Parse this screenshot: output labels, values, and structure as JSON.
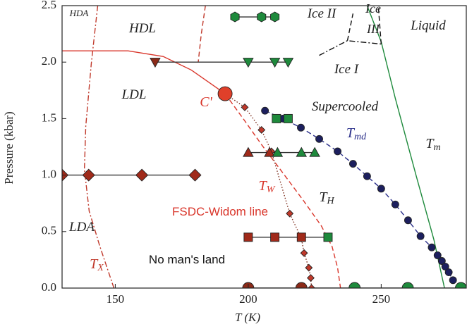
{
  "chart_data": {
    "type": "scatter",
    "x_label": "T (K)",
    "y_label": "Pressure (kbar)",
    "xlim": [
      130,
      282
    ],
    "ylim": [
      0,
      2.5
    ],
    "xticks": [
      150,
      200,
      250
    ],
    "yticks": [
      {
        "value": 0,
        "label": "0.0"
      },
      0.5,
      {
        "value": 1,
        "label": "1.0"
      },
      1.5,
      {
        "value": 2,
        "label": "2.0"
      },
      2.5
    ],
    "series": [
      {
        "x": [
          143.4,
          141,
          138.9,
          138.4,
          140.2,
          144.2,
          149.5
        ],
        "values": [
          2.5,
          1.99,
          1.43,
          1.05,
          0.68,
          0.37,
          0
        ],
        "color": "#c0392b",
        "line": "dashdot",
        "marker": null
      },
      {
        "x": [
          130,
          154.8,
          168,
          178.6,
          186.5,
          191.3
        ],
        "values": [
          2.1,
          2.1,
          2.05,
          1.93,
          1.8,
          1.72
        ],
        "color": "#d9362b",
        "line": "solid",
        "marker": null
      },
      {
        "x": [
          191.3,
          198.4,
          205,
          213,
          220.9,
          227.5,
          231.5,
          233.6,
          234.7
        ],
        "values": [
          1.72,
          1.49,
          1.27,
          1.02,
          0.77,
          0.55,
          0.37,
          0.18,
          0
        ],
        "color": "#d9362b",
        "line": "dashed",
        "marker": null
      },
      {
        "x": [
          183.9,
          182.3,
          181.2
        ],
        "values": [
          2.5,
          2.24,
          2
        ],
        "color": "#c0392b",
        "line": "dashed",
        "marker": null
      },
      {
        "x": [
          244.7,
          250,
          255.3,
          263.2,
          269.8,
          273.8
        ],
        "values": [
          2.5,
          2.18,
          1.68,
          0.99,
          0.43,
          0
        ],
        "color": "#1e8a3c",
        "line": "solid",
        "marker": null
      },
      {
        "x": [
          226.7,
          237.3,
          250
        ],
        "values": [
          2.06,
          2.19,
          2.16
        ],
        "color": "#111111",
        "line": "dashdot",
        "marker": null
      },
      {
        "x": [
          237.3,
          239.4
        ],
        "values": [
          2.19,
          2.43
        ],
        "color": "#111111",
        "line": "dashed",
        "marker": null
      },
      {
        "x": [
          250,
          248.9
        ],
        "values": [
          2.16,
          2.5
        ],
        "color": "#111111",
        "line": "dashed",
        "marker": null
      },
      {
        "x": [
          191.3,
          198.7,
          205,
          208.7,
          215.6,
          220,
          221,
          222.8,
          223.5,
          223.8
        ],
        "values": [
          1.72,
          1.6,
          1.4,
          1.21,
          0.66,
          0.44,
          0.31,
          0.18,
          0.09,
          0
        ],
        "color": "#7a2a1a",
        "line": "dotted",
        "marker": null
      },
      {
        "x": [
          198.7,
          205,
          208.7,
          215.6,
          220,
          221,
          222.8,
          223.5,
          223.8
        ],
        "values": [
          1.6,
          1.4,
          1.21,
          0.66,
          0.44,
          0.31,
          0.18,
          0.09,
          0
        ],
        "color": "#c0392b",
        "line": null,
        "marker": "diamond",
        "size": 4
      },
      {
        "x": [
          206.3,
          213,
          219.8,
          226.7,
          233.6,
          239.4,
          244.7,
          250,
          255.3,
          260.1,
          264.8,
          269,
          271.2,
          272.8,
          274.1,
          275.4,
          277
        ],
        "values": [
          1.57,
          1.5,
          1.42,
          1.32,
          1.21,
          1.1,
          0.99,
          0.88,
          0.74,
          0.6,
          0.46,
          0.36,
          0.29,
          0.24,
          0.19,
          0.14,
          0.07
        ],
        "color": "#1c1f5e",
        "line": "dashed",
        "line_color": "#2a2f8a",
        "marker": "circle",
        "size": 5
      },
      {
        "x": [
          195,
          205,
          210
        ],
        "values": [
          2.4,
          2.4,
          2.4
        ],
        "color": "#1e8a3c",
        "line": "solid",
        "line_color": "#333333",
        "marker": "hexagon",
        "size": 7
      },
      {
        "x": [
          165,
          200,
          210,
          215
        ],
        "values": [
          2,
          2,
          2,
          2
        ],
        "colors": [
          "#8b2a18",
          "#1e8a3c",
          "#1e8a3c",
          "#1e8a3c"
        ],
        "line": "solid",
        "line_color": "#333333",
        "marker": "triangle-down",
        "size": 7
      },
      {
        "x": [
          200,
          208,
          211,
          220,
          225
        ],
        "values": [
          1.2,
          1.2,
          1.2,
          1.2,
          1.2
        ],
        "colors": [
          "#a02a1a",
          "#a02a1a",
          "#1e8a3c",
          "#1e8a3c",
          "#1e8a3c"
        ],
        "line": "solid",
        "line_color": "#333333",
        "marker": "triangle-up",
        "size": 7
      },
      {
        "x": [
          130,
          140,
          160,
          180
        ],
        "values": [
          1,
          1,
          1,
          1
        ],
        "color": "#a02a1a",
        "line": "solid",
        "line_color": "#333333",
        "marker": "diamond",
        "size": 7
      },
      {
        "x": [
          210.6,
          215
        ],
        "values": [
          1.5,
          1.5
        ],
        "color": "#1e8a3c",
        "line": "solid",
        "line_color": "#333333",
        "marker": "square",
        "size": 6
      },
      {
        "x": [
          200,
          210,
          220,
          230
        ],
        "values": [
          0.45,
          0.45,
          0.45,
          0.45
        ],
        "colors": [
          "#a02a1a",
          "#a02a1a",
          "#a02a1a",
          "#1e8a3c"
        ],
        "line": "solid",
        "line_color": "#333333",
        "marker": "square",
        "size": 6
      },
      {
        "x": [
          200,
          220,
          240,
          260,
          280,
          282
        ],
        "values": [
          0,
          0,
          0,
          0,
          0,
          0
        ],
        "colors": [
          "#8b2a18",
          "#8b2a18",
          "#1e8a3c",
          "#1e8a3c",
          "#1e8a3c",
          null
        ],
        "line": "solid",
        "line_color": "#333333",
        "marker": "circle",
        "size": 8
      },
      {
        "x": [
          191.3
        ],
        "values": [
          1.72
        ],
        "color": "#e0402a",
        "line": null,
        "marker": "circle",
        "size": 10
      }
    ],
    "annotations": [
      {
        "text": "HDA",
        "color": "#222222"
      },
      {
        "text": "HDL",
        "color": "#222222"
      },
      {
        "text": "Ice II",
        "color": "#222222"
      },
      {
        "text": "Ice",
        "color": "#222222"
      },
      {
        "text": "III",
        "color": "#222222"
      },
      {
        "text": "Liquid",
        "color": "#222222"
      },
      {
        "text": "Ice I",
        "color": "#222222"
      },
      {
        "text": "LDL",
        "color": "#222222"
      },
      {
        "text": "C'",
        "color": "#d9362b"
      },
      {
        "text": "Supercooled",
        "color": "#222222"
      },
      {
        "text": "T",
        "sub": "md",
        "color": "#2a2f8a"
      },
      {
        "text": "T",
        "sub": "m",
        "color": "#222222"
      },
      {
        "text": "T",
        "sub": "W",
        "color": "#d9362b"
      },
      {
        "text": "T",
        "sub": "H",
        "color": "#222222"
      },
      {
        "text": "FSDC-Widom line",
        "color": "#d9362b"
      },
      {
        "text": "LDA",
        "color": "#222222"
      },
      {
        "text": "T",
        "sub": "X",
        "color": "#c0392b"
      },
      {
        "text": "No man's land",
        "color": "#111111"
      }
    ]
  }
}
